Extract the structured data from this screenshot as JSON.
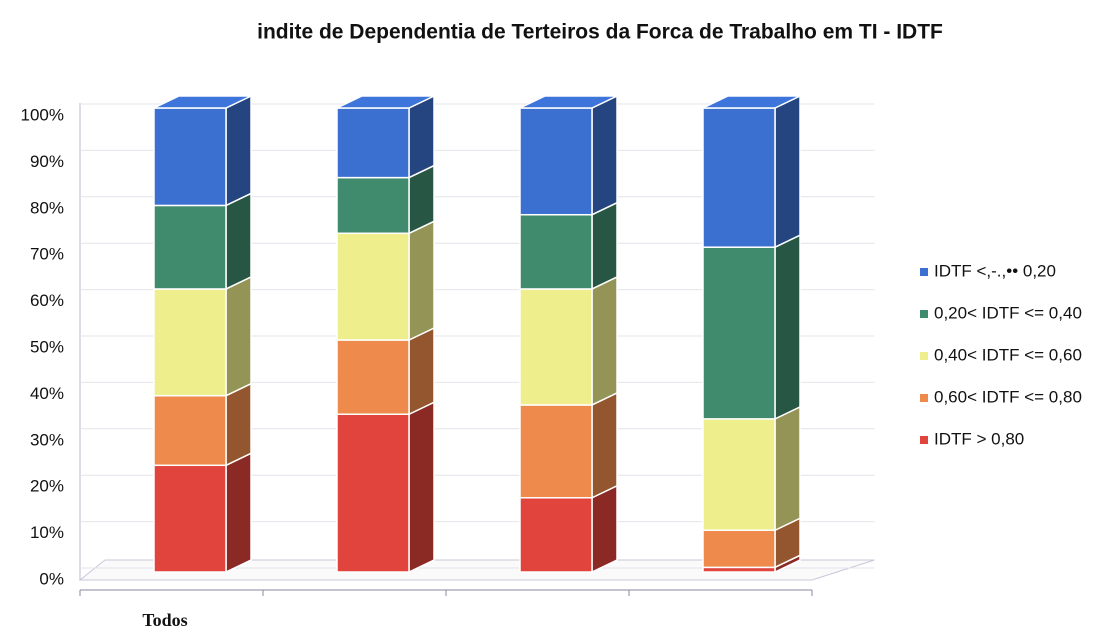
{
  "chart_data": {
    "type": "bar",
    "stacked": true,
    "title": "indite de Dependentia de Terteiros da Forca de Trabalho em TI - IDTF",
    "categories": [
      "Todos",
      null,
      null,
      null
    ],
    "series": [
      {
        "name": "IDTF > 0,80",
        "color": "#e0443c",
        "values": [
          23,
          34,
          16,
          1
        ]
      },
      {
        "name": "0,60< IDTF <= 0,80",
        "color": "#ee8a4c",
        "values": [
          15,
          16,
          20,
          8
        ]
      },
      {
        "name": "0,40< IDTF <= 0,60",
        "color": "#eeee8c",
        "values": [
          23,
          23,
          25,
          24
        ]
      },
      {
        "name": "0,20< IDTF <= 0,40",
        "color": "#408a6e",
        "values": [
          18,
          12,
          16,
          37
        ]
      },
      {
        "name": "IDTF <,-.,•• 0,20",
        "color": "#3b6fd0",
        "values": [
          21,
          15,
          23,
          30
        ]
      }
    ],
    "ylim": [
      0,
      100
    ],
    "yticks": [
      {
        "value": 0,
        "label": "0%"
      },
      {
        "value": 10,
        "label": "10%"
      },
      {
        "value": 20,
        "label": "20%"
      },
      {
        "value": 30,
        "label": "30%"
      },
      {
        "value": 40,
        "label": "40%"
      },
      {
        "value": 50,
        "label": "50%"
      },
      {
        "value": 60,
        "label": "60%"
      },
      {
        "value": 70,
        "label": "70%"
      },
      {
        "value": 80,
        "label": "80%"
      },
      {
        "value": 90,
        "label": "90%"
      },
      {
        "value": 100,
        "label": "100%"
      }
    ],
    "grid": true
  }
}
